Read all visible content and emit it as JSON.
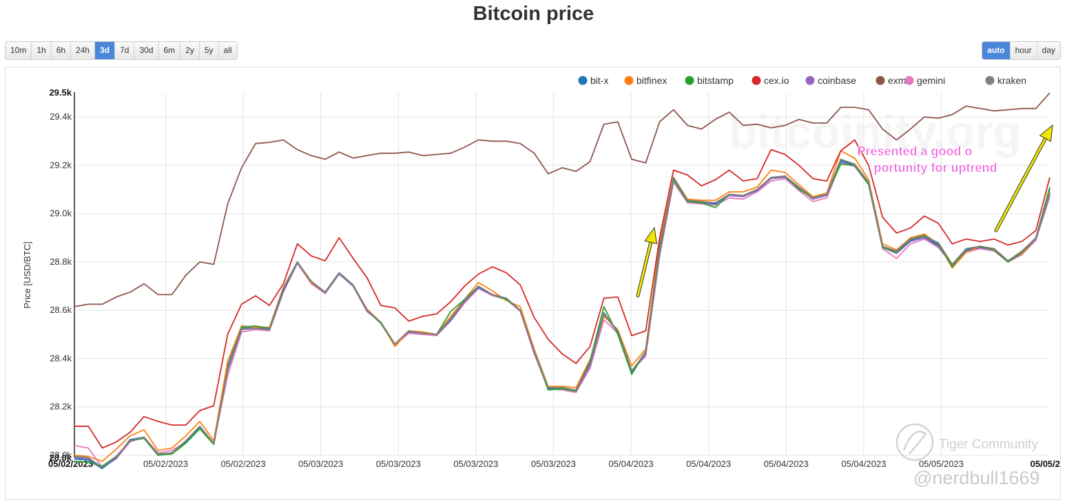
{
  "page": {
    "title": "Bitcoin price"
  },
  "range_buttons": [
    {
      "label": "10m",
      "active": false
    },
    {
      "label": "1h",
      "active": false
    },
    {
      "label": "6h",
      "active": false
    },
    {
      "label": "24h",
      "active": false
    },
    {
      "label": "3d",
      "active": true
    },
    {
      "label": "7d",
      "active": false
    },
    {
      "label": "30d",
      "active": false
    },
    {
      "label": "6m",
      "active": false
    },
    {
      "label": "2y",
      "active": false
    },
    {
      "label": "5y",
      "active": false
    },
    {
      "label": "all",
      "active": false
    }
  ],
  "resolution_buttons": [
    {
      "label": "auto",
      "active": true
    },
    {
      "label": "hour",
      "active": false
    },
    {
      "label": "day",
      "active": false
    }
  ],
  "watermarks": {
    "site": "bitcoinity.org",
    "community": "Tiger Community",
    "handle": "@nerdbull1669"
  },
  "chart_data": {
    "type": "line",
    "ylabel": "Price [USD/BTC]",
    "xlabel": "",
    "ylim": [
      28.0,
      29.5
    ],
    "y_ticks": [
      "28.0k",
      "28.2k",
      "28.4k",
      "28.6k",
      "28.8k",
      "29.0k",
      "29.2k",
      "29.4k"
    ],
    "y_bound_labels": [
      "28.0k",
      "29.5k"
    ],
    "x_tick_labels": [
      "05/02/2023",
      "05/02/2023",
      "05/02/2023",
      "05/03/2023",
      "05/03/2023",
      "05/03/2023",
      "05/03/2023",
      "05/04/2023",
      "05/04/2023",
      "05/04/2023",
      "05/04/2023",
      "05/05/2023",
      "05/05/2"
    ],
    "grid": true,
    "legend_position": "top-right",
    "annotation": "Presented a good opportunity for uptrend",
    "colors": {
      "bit-x": "#1f77b4",
      "bitfinex": "#ff7f0e",
      "bitstamp": "#2ca02c",
      "cex.io": "#d62728",
      "coinbase": "#9467bd",
      "exmo": "#8c564b",
      "gemini": "#e377c2",
      "kraken": "#7f7f7f"
    },
    "arrow_color": "#f2e600",
    "annotation_color": "#f25ce0",
    "series": [
      {
        "name": "bit-x",
        "values": [
          27.985,
          27.98,
          27.945,
          27.99,
          28.065,
          28.075,
          28.0,
          28.01,
          28.055,
          28.115,
          28.045,
          28.37,
          28.53,
          28.53,
          28.52,
          28.685,
          28.8,
          28.715,
          28.675,
          28.755,
          28.705,
          28.6,
          28.55,
          28.46,
          28.515,
          28.505,
          28.5,
          28.56,
          28.64,
          28.695,
          28.665,
          28.65,
          28.6,
          28.43,
          28.275,
          28.28,
          28.27,
          28.38,
          28.59,
          28.51,
          28.345,
          28.43,
          28.84,
          29.145,
          29.055,
          29.05,
          29.04,
          29.08,
          29.075,
          29.1,
          29.15,
          29.155,
          29.11,
          29.065,
          29.08,
          29.22,
          29.2,
          29.13,
          28.865,
          28.84,
          28.89,
          28.905,
          28.87,
          28.79,
          28.85,
          28.86,
          28.855,
          28.805,
          28.84,
          28.9,
          29.1
        ]
      },
      {
        "name": "bitfinex",
        "values": [
          28.0,
          27.995,
          27.975,
          28.025,
          28.08,
          28.105,
          28.02,
          28.03,
          28.08,
          28.14,
          28.06,
          28.39,
          28.535,
          28.53,
          28.53,
          28.695,
          28.8,
          28.715,
          28.675,
          28.755,
          28.705,
          28.605,
          28.55,
          28.45,
          28.515,
          28.51,
          28.5,
          28.575,
          28.645,
          28.715,
          28.68,
          28.64,
          28.615,
          28.44,
          28.285,
          28.285,
          28.28,
          28.395,
          28.575,
          28.52,
          28.37,
          28.44,
          28.88,
          29.15,
          29.06,
          29.055,
          29.055,
          29.09,
          29.09,
          29.11,
          29.18,
          29.17,
          29.12,
          29.07,
          29.085,
          29.26,
          29.23,
          29.14,
          28.875,
          28.85,
          28.9,
          28.915,
          28.875,
          28.775,
          28.84,
          28.865,
          28.855,
          28.805,
          28.835,
          28.9,
          29.09
        ]
      },
      {
        "name": "bitstamp",
        "values": [
          27.975,
          27.97,
          27.955,
          27.995,
          28.06,
          28.07,
          28.0,
          28.005,
          28.05,
          28.11,
          28.045,
          28.36,
          28.53,
          28.535,
          28.525,
          28.69,
          28.8,
          28.72,
          28.675,
          28.755,
          28.705,
          28.6,
          28.545,
          28.46,
          28.515,
          28.505,
          28.5,
          28.595,
          28.645,
          28.7,
          28.665,
          28.645,
          28.6,
          28.43,
          28.27,
          28.275,
          28.265,
          28.39,
          28.615,
          28.5,
          28.335,
          28.43,
          28.86,
          29.14,
          29.05,
          29.045,
          29.025,
          29.08,
          29.075,
          29.1,
          29.15,
          29.155,
          29.1,
          29.065,
          29.08,
          29.205,
          29.2,
          29.12,
          28.86,
          28.84,
          28.895,
          28.91,
          28.875,
          28.78,
          28.855,
          28.865,
          28.85,
          28.8,
          28.84,
          28.9,
          29.11
        ]
      },
      {
        "name": "cex.io",
        "values": [
          28.12,
          28.12,
          28.03,
          28.055,
          28.095,
          28.16,
          28.14,
          28.125,
          28.125,
          28.185,
          28.205,
          28.5,
          28.625,
          28.66,
          28.62,
          28.71,
          28.875,
          28.825,
          28.805,
          28.9,
          28.815,
          28.735,
          28.62,
          28.61,
          28.555,
          28.575,
          28.585,
          28.635,
          28.7,
          28.75,
          28.78,
          28.755,
          28.705,
          28.57,
          28.48,
          28.42,
          28.38,
          28.45,
          28.65,
          28.655,
          28.495,
          28.515,
          28.9,
          29.18,
          29.16,
          29.115,
          29.14,
          29.18,
          29.135,
          29.145,
          29.265,
          29.245,
          29.2,
          29.145,
          29.135,
          29.26,
          29.305,
          29.2,
          28.985,
          28.92,
          28.94,
          28.99,
          28.96,
          28.875,
          28.895,
          28.885,
          28.895,
          28.87,
          28.885,
          28.93,
          29.15
        ]
      },
      {
        "name": "coinbase",
        "values": [
          27.99,
          27.985,
          27.945,
          27.995,
          28.06,
          28.07,
          28.0,
          28.01,
          28.055,
          28.11,
          28.045,
          28.35,
          28.52,
          28.525,
          28.52,
          28.68,
          28.795,
          28.715,
          28.67,
          28.75,
          28.7,
          28.595,
          28.55,
          28.46,
          28.51,
          28.505,
          28.5,
          28.56,
          28.635,
          28.695,
          28.665,
          28.645,
          28.6,
          28.425,
          28.275,
          28.275,
          28.265,
          28.37,
          28.58,
          28.51,
          28.345,
          28.42,
          28.835,
          29.14,
          29.05,
          29.045,
          29.04,
          29.075,
          29.07,
          29.095,
          29.145,
          29.15,
          29.105,
          29.06,
          29.075,
          29.215,
          29.2,
          29.125,
          28.86,
          28.835,
          28.885,
          28.9,
          28.865,
          28.785,
          28.845,
          28.86,
          28.85,
          28.8,
          28.835,
          28.895,
          29.08
        ]
      },
      {
        "name": "exmo",
        "values": [
          28.615,
          28.625,
          28.625,
          28.655,
          28.675,
          28.71,
          28.665,
          28.665,
          28.745,
          28.8,
          28.79,
          29.04,
          29.19,
          29.29,
          29.295,
          29.305,
          29.265,
          29.24,
          29.225,
          29.255,
          29.23,
          29.24,
          29.25,
          29.25,
          29.255,
          29.24,
          29.245,
          29.25,
          29.275,
          29.305,
          29.3,
          29.3,
          29.29,
          29.25,
          29.165,
          29.19,
          29.175,
          29.215,
          29.37,
          29.38,
          29.225,
          29.21,
          29.38,
          29.43,
          29.365,
          29.35,
          29.39,
          29.42,
          29.365,
          29.37,
          29.355,
          29.365,
          29.39,
          29.375,
          29.375,
          29.44,
          29.44,
          29.43,
          29.35,
          29.305,
          29.35,
          29.4,
          29.395,
          29.41,
          29.445,
          29.435,
          29.425,
          29.43,
          29.435,
          29.435,
          29.5
        ]
      },
      {
        "name": "gemini",
        "values": [
          28.04,
          28.03,
          27.95,
          27.985,
          28.055,
          28.075,
          28.01,
          28.02,
          28.055,
          28.115,
          28.05,
          28.33,
          28.51,
          28.52,
          28.515,
          28.675,
          28.795,
          28.71,
          28.67,
          28.75,
          28.7,
          28.6,
          28.545,
          28.455,
          28.505,
          28.5,
          28.495,
          28.555,
          28.63,
          28.69,
          28.66,
          28.645,
          28.595,
          28.42,
          28.275,
          28.27,
          28.26,
          28.36,
          28.56,
          28.505,
          28.35,
          28.41,
          28.825,
          29.13,
          29.045,
          29.04,
          29.035,
          29.065,
          29.06,
          29.09,
          29.135,
          29.145,
          29.095,
          29.05,
          29.065,
          29.21,
          29.195,
          29.12,
          28.855,
          28.815,
          28.875,
          28.895,
          28.86,
          28.79,
          28.84,
          28.855,
          28.845,
          28.8,
          28.83,
          28.89,
          29.07
        ]
      },
      {
        "name": "kraken",
        "values": [
          27.995,
          27.99,
          27.95,
          27.995,
          28.06,
          28.075,
          28.005,
          28.01,
          28.06,
          28.12,
          28.05,
          28.355,
          28.525,
          28.525,
          28.52,
          28.69,
          28.8,
          28.72,
          28.675,
          28.755,
          28.705,
          28.6,
          28.55,
          28.46,
          28.515,
          28.505,
          28.5,
          28.565,
          28.64,
          28.7,
          28.665,
          28.65,
          28.6,
          28.43,
          28.28,
          28.28,
          28.27,
          28.38,
          28.585,
          28.515,
          28.35,
          28.425,
          28.845,
          29.15,
          29.055,
          29.05,
          29.045,
          29.08,
          29.075,
          29.1,
          29.15,
          29.155,
          29.11,
          29.065,
          29.08,
          29.225,
          29.205,
          29.13,
          28.865,
          28.845,
          28.895,
          28.905,
          28.88,
          28.79,
          28.855,
          28.865,
          28.855,
          28.805,
          28.845,
          28.9,
          29.085
        ]
      }
    ]
  }
}
